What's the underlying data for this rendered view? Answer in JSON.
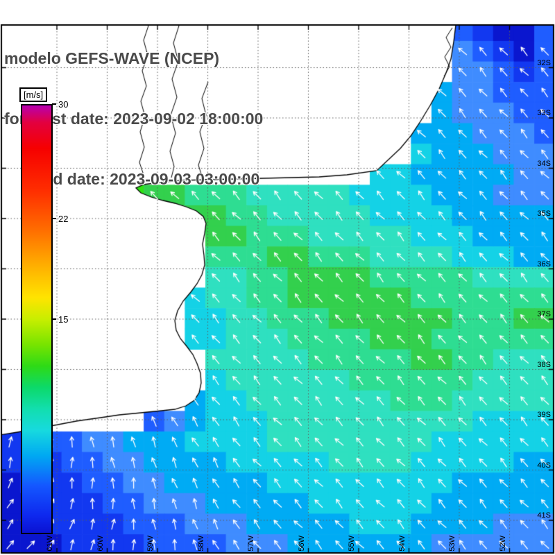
{
  "header": {
    "line1": "modelo GEFS-WAVE (NCEP)",
    "line2": "forecast date: 2023-09-02 18:00:00",
    "line3": "valid date: 2023-09-03 03:00:00"
  },
  "colorbar": {
    "unit_label": "[m/s]",
    "min": 0,
    "max": 30,
    "ticks": [
      {
        "label": "30",
        "value": 30
      },
      {
        "label": "22",
        "value": 22
      },
      {
        "label": "15",
        "value": 15
      }
    ],
    "gradient_stops": [
      [
        "0%",
        "#b800b0"
      ],
      [
        "4%",
        "#e3003f"
      ],
      [
        "10%",
        "#f60000"
      ],
      [
        "20%",
        "#ff2e00"
      ],
      [
        "29%",
        "#ff6c00"
      ],
      [
        "37%",
        "#ffab00"
      ],
      [
        "45%",
        "#ffe400"
      ],
      [
        "50%",
        "#c8ee00"
      ],
      [
        "56%",
        "#77e400"
      ],
      [
        "61%",
        "#2eda16"
      ],
      [
        "66%",
        "#0cd96a"
      ],
      [
        "71%",
        "#12deae"
      ],
      [
        "76%",
        "#17dade"
      ],
      [
        "82%",
        "#00a8f2"
      ],
      [
        "89%",
        "#1457ff"
      ],
      [
        "96%",
        "#0e28ee"
      ],
      [
        "100%",
        "#0a12d2"
      ]
    ]
  },
  "map": {
    "lat_labels": [
      "32S",
      "33S",
      "34S",
      "35S",
      "36S",
      "37S",
      "38S",
      "39S",
      "40S",
      "41S"
    ],
    "lon_labels": [
      "61W",
      "60W",
      "59W",
      "58W",
      "57W",
      "56W",
      "55W",
      "54W",
      "53W",
      "52W"
    ],
    "arrow_color": "#ffffff",
    "grid_color": "#5a5a5a",
    "coast_color": "#000000",
    "land_color": "#ffffff",
    "field": {
      "palette": {
        "0": "#0a16cf",
        "1": "#1238f0",
        "2": "#1f5dff",
        "3": "#3f8cff",
        "4": "#00abf4",
        "5": "#14d2e6",
        "6": "#2fe0c0",
        "7": "#2edd92",
        "8": "#33d04d",
        "9": "#2ee312"
      },
      "rows": [
        "......................31012",
        "......................21002",
        "......................32102",
        "......................33212",
        ".....................433222",
        ".....................433322",
        "....................4443332",
        "....................5444333",
        "..................554444433",
        "......988777666665555444333",
        ".........887766666555544444",
        "..........88777666665554444",
        "..........77788777666655544",
        "..........66778888777776666",
        ".........566778888887777777",
        ".........556677788888877788",
        ".........556667777888777777",
        "..........66666777778877666",
        "..........56666667777776666",
        ".........455666666677766666",
        ".......23455566666666665555",
        "112233444555566666666555555",
        "111223344445555566665555544",
        "011122334444455555555544444",
        "001112233344444555555444444",
        "001111222333444445554444333",
        "000111122223334444444333333"
      ]
    }
  }
}
